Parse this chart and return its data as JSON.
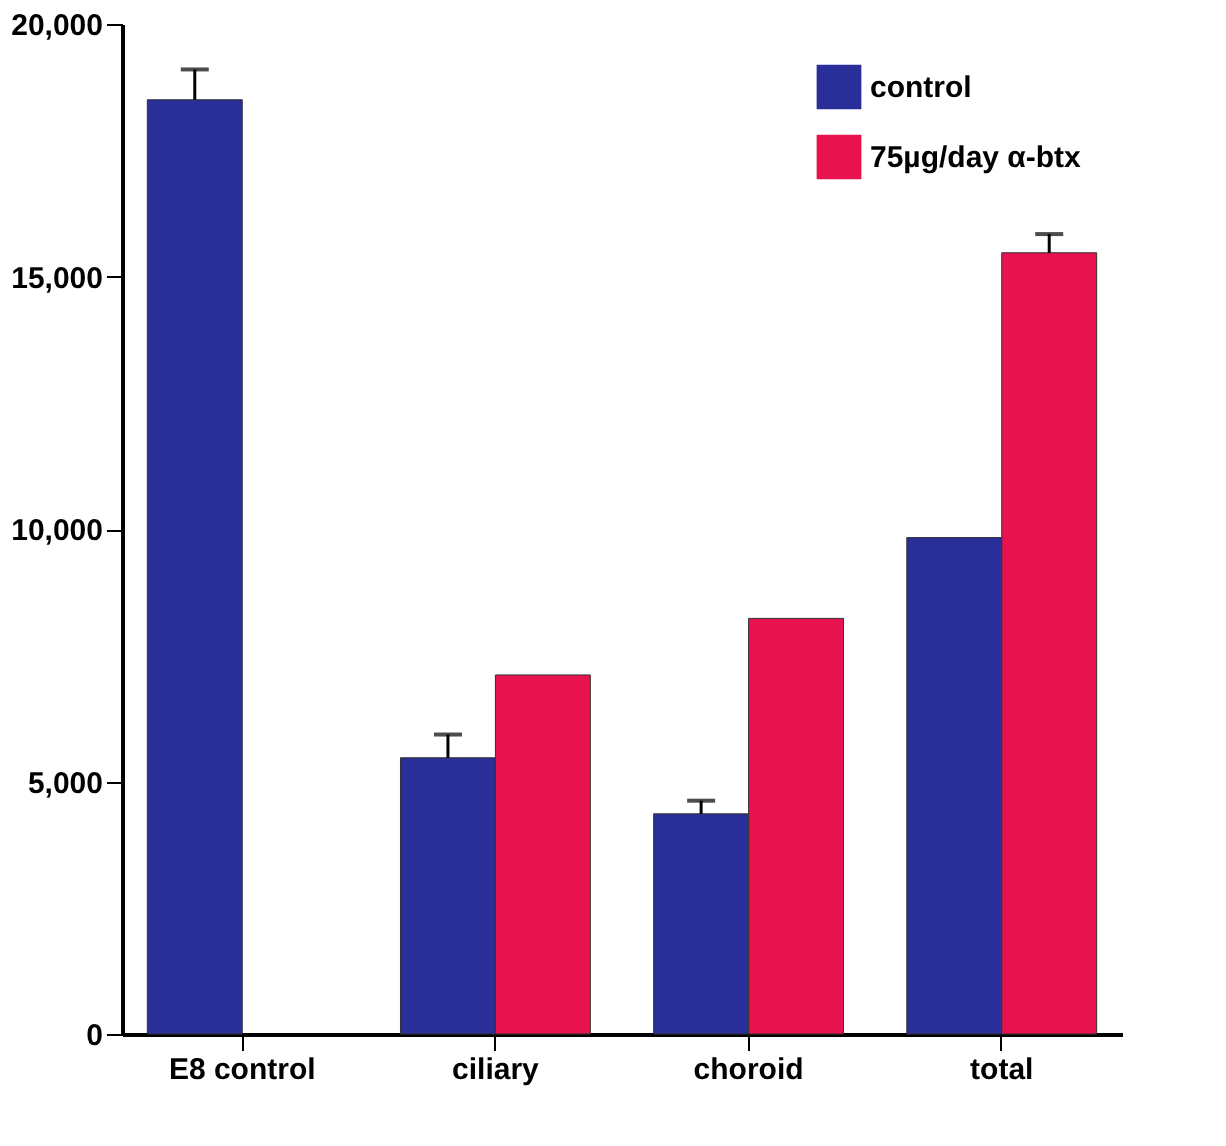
{
  "chart_data": {
    "type": "bar",
    "categories": [
      "E8 control",
      "ciliary",
      "choroid",
      "total"
    ],
    "series": [
      {
        "name": "control",
        "color": "#2a2e98",
        "values": [
          18500,
          5470,
          4360,
          9830
        ],
        "errors": [
          [
            18500,
            19100
          ],
          [
            5470,
            5930
          ],
          [
            4360,
            4620
          ],
          null
        ]
      },
      {
        "name": "75µg/day α-btx",
        "color": "#e8124e",
        "values": [
          null,
          7110,
          8230,
          15470
        ],
        "errors": [
          null,
          null,
          null,
          [
            15470,
            15840
          ]
        ]
      }
    ],
    "ylim": [
      0,
      20000
    ],
    "yticks": [
      0,
      {
        "value": 5000,
        "label": "5,000"
      },
      {
        "value": 10000,
        "label": "10,000"
      },
      {
        "value": 15000,
        "label": "15,000"
      },
      {
        "value": 20000,
        "label": "20,000"
      }
    ],
    "grid": false,
    "legend": "top right"
  }
}
